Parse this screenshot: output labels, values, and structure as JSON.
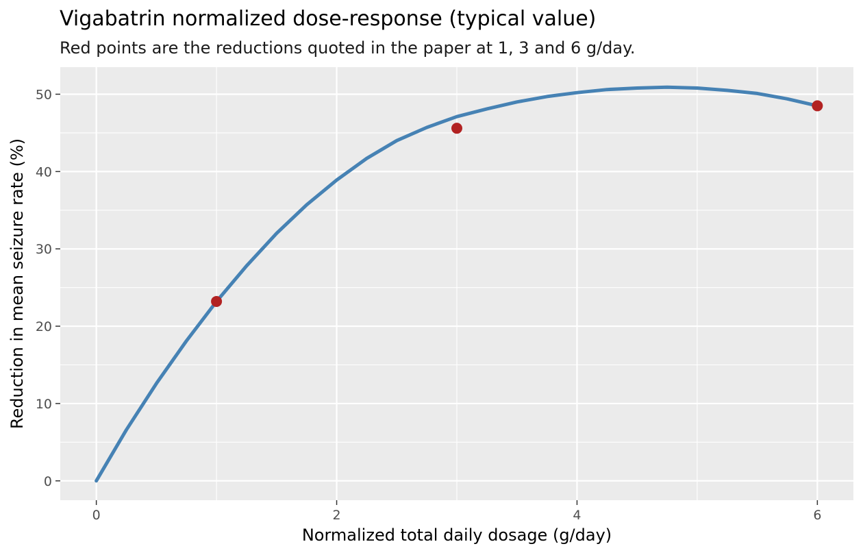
{
  "chart_data": {
    "type": "line",
    "title": "Vigabatrin normalized dose-response (typical value)",
    "subtitle": "Red points are the reductions quoted in the paper at 1, 3 and 6 g/day.",
    "xlabel": "Normalized total daily dosage (g/day)",
    "ylabel": "Reduction in mean seizure rate (%)",
    "xlim": [
      -0.3,
      6.3
    ],
    "ylim": [
      -2.5,
      53.5
    ],
    "x_ticks": [
      0,
      2,
      4,
      6
    ],
    "y_ticks": [
      0,
      10,
      20,
      30,
      40,
      50
    ],
    "grid": true,
    "series": [
      {
        "type": "line",
        "color": "#4682B4",
        "x": [
          0,
          0.25,
          0.5,
          0.75,
          1,
          1.25,
          1.5,
          1.75,
          2,
          2.25,
          2.5,
          2.75,
          3,
          3.25,
          3.5,
          3.75,
          4,
          4.25,
          4.5,
          4.75,
          5,
          5.25,
          5.5,
          5.75,
          6
        ],
        "y": [
          0,
          6.6,
          12.6,
          18.1,
          23.2,
          27.8,
          32.0,
          35.7,
          38.9,
          41.7,
          44.0,
          45.7,
          47.1,
          48.1,
          49.0,
          49.7,
          50.2,
          50.6,
          50.8,
          50.9,
          50.8,
          50.5,
          50.1,
          49.4,
          48.5
        ]
      },
      {
        "type": "scatter",
        "color": "#B22222",
        "x": [
          1,
          3,
          6
        ],
        "y": [
          23.2,
          45.6,
          48.5
        ]
      }
    ]
  }
}
